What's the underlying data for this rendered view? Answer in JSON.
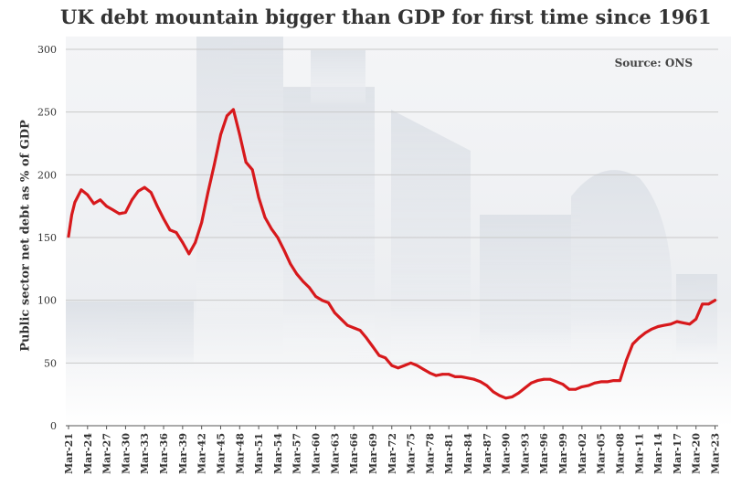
{
  "chart_data": {
    "type": "line",
    "title": "UK debt mountain bigger than GDP for first time since 1961",
    "source": "Source: ONS",
    "ylabel": "Public sector net debt as % of GDP",
    "xlabel": "",
    "ylim": [
      0,
      300
    ],
    "xlim": [
      1921,
      2023.5
    ],
    "yticks": [
      0,
      50,
      100,
      150,
      200,
      250,
      300
    ],
    "xticks": [
      {
        "label": "Mar-21",
        "year": 1921
      },
      {
        "label": "Mar-24",
        "year": 1924
      },
      {
        "label": "Mar-27",
        "year": 1927
      },
      {
        "label": "Mar-30",
        "year": 1930
      },
      {
        "label": "Mar-33",
        "year": 1933
      },
      {
        "label": "Mar-36",
        "year": 1936
      },
      {
        "label": "Mar-39",
        "year": 1939
      },
      {
        "label": "Mar-42",
        "year": 1942
      },
      {
        "label": "Mar-45",
        "year": 1945
      },
      {
        "label": "Mar-48",
        "year": 1948
      },
      {
        "label": "Mar-51",
        "year": 1951
      },
      {
        "label": "Mar-54",
        "year": 1954
      },
      {
        "label": "Mar-57",
        "year": 1957
      },
      {
        "label": "Mar-60",
        "year": 1960
      },
      {
        "label": "Mar-63",
        "year": 1963
      },
      {
        "label": "Mar-66",
        "year": 1966
      },
      {
        "label": "Mar-69",
        "year": 1969
      },
      {
        "label": "Mar-72",
        "year": 1972
      },
      {
        "label": "Mar-75",
        "year": 1975
      },
      {
        "label": "Mar-78",
        "year": 1978
      },
      {
        "label": "Mar-81",
        "year": 1981
      },
      {
        "label": "Mar-84",
        "year": 1984
      },
      {
        "label": "Mar-87",
        "year": 1987
      },
      {
        "label": "Mar-90",
        "year": 1990
      },
      {
        "label": "Mar-93",
        "year": 1993
      },
      {
        "label": "Mar-96",
        "year": 1996
      },
      {
        "label": "Mar-99",
        "year": 1999
      },
      {
        "label": "Mar-02",
        "year": 2002
      },
      {
        "label": "Mar-05",
        "year": 2005
      },
      {
        "label": "Mar-08",
        "year": 2008
      },
      {
        "label": "Mar-11",
        "year": 2011
      },
      {
        "label": "Mar-14",
        "year": 2014
      },
      {
        "label": "Mar-17",
        "year": 2017
      },
      {
        "label": "Mar-20",
        "year": 2020
      },
      {
        "label": "Mar-23",
        "year": 2023
      }
    ],
    "series": [
      {
        "name": "Public sector net debt as % of GDP",
        "color": "#d7191c",
        "x": [
          1921,
          1921.5,
          1922,
          1923,
          1924,
          1925,
          1926,
          1927,
          1928,
          1929,
          1930,
          1931,
          1932,
          1933,
          1934,
          1935,
          1936,
          1937,
          1938,
          1939,
          1940,
          1941,
          1942,
          1943,
          1944,
          1945,
          1946,
          1947,
          1948,
          1949,
          1950,
          1951,
          1952,
          1953,
          1954,
          1955,
          1956,
          1957,
          1958,
          1959,
          1960,
          1961,
          1962,
          1963,
          1964,
          1965,
          1966,
          1967,
          1968,
          1969,
          1970,
          1971,
          1972,
          1973,
          1974,
          1975,
          1976,
          1977,
          1978,
          1979,
          1980,
          1981,
          1982,
          1983,
          1984,
          1985,
          1986,
          1987,
          1988,
          1989,
          1990,
          1991,
          1992,
          1993,
          1994,
          1995,
          1996,
          1997,
          1998,
          1999,
          2000,
          2001,
          2002,
          2003,
          2004,
          2005,
          2006,
          2007,
          2008,
          2009,
          2010,
          2011,
          2012,
          2013,
          2014,
          2015,
          2016,
          2017,
          2018,
          2019,
          2020,
          2021,
          2022,
          2023
        ],
        "values": [
          151,
          168,
          178,
          188,
          184,
          177,
          180,
          175,
          172,
          169,
          170,
          180,
          187,
          190,
          186,
          175,
          165,
          156,
          154,
          146,
          137,
          146,
          162,
          186,
          208,
          232,
          247,
          252,
          232,
          210,
          204,
          182,
          166,
          157,
          150,
          140,
          129,
          121,
          115,
          110,
          103,
          100,
          98,
          90,
          85,
          80,
          78,
          76,
          70,
          63,
          56,
          54,
          48,
          46,
          48,
          50,
          48,
          45,
          42,
          40,
          41,
          41,
          39,
          39,
          38,
          37,
          35,
          32,
          27,
          24,
          22,
          23,
          26,
          30,
          34,
          36,
          37,
          37,
          35,
          33,
          29,
          29,
          31,
          32,
          34,
          35,
          35,
          36,
          36,
          52,
          65,
          70,
          74,
          77,
          79,
          80,
          81,
          83,
          82,
          81,
          85,
          97,
          97,
          100
        ]
      }
    ]
  }
}
